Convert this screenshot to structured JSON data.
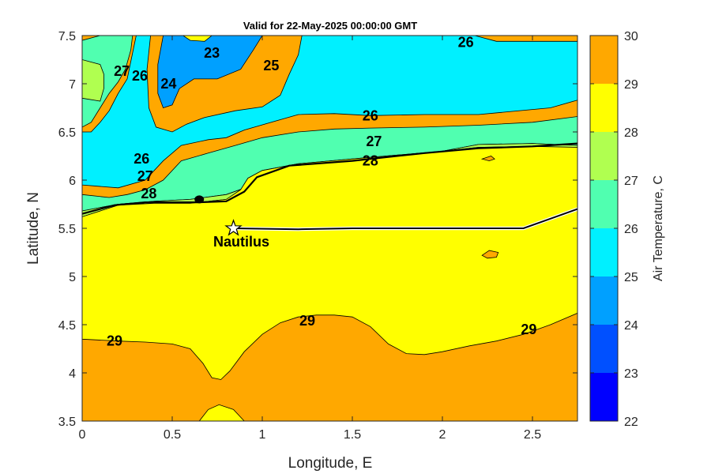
{
  "chart_data": {
    "type": "heatmap",
    "subtype": "filled-contour",
    "title": "Valid for 22-May-2025 00:00:00 GMT",
    "xlabel": "Longitude, E",
    "ylabel": "Latitude, N",
    "xlim": [
      0,
      2.75
    ],
    "ylim": [
      3.5,
      7.5
    ],
    "xticks": [
      0,
      0.5,
      1,
      1.5,
      2,
      2.5
    ],
    "xtick_labels": [
      "0",
      "0.5",
      "1",
      "1.5",
      "2",
      "2.5"
    ],
    "yticks": [
      3.5,
      4,
      4.5,
      5,
      5.5,
      6,
      6.5,
      7,
      7.5
    ],
    "ytick_labels": [
      "3.5",
      "4",
      "4.5",
      "5",
      "5.5",
      "6",
      "6.5",
      "7",
      "7.5"
    ],
    "colorbar": {
      "label": "Air Temperature, C",
      "levels": [
        22,
        23,
        24,
        25,
        26,
        27,
        28,
        29,
        30
      ],
      "tick_labels": [
        "22",
        "23",
        "24",
        "25",
        "26",
        "27",
        "28",
        "29",
        "30"
      ],
      "colors": [
        "#0000ff",
        "#0050ff",
        "#00a0ff",
        "#00f0ff",
        "#50ffb0",
        "#b0ff50",
        "#ffff00",
        "#ffa800",
        "#ff5000"
      ]
    },
    "regions": [
      {
        "level": 23,
        "points": [
          [
            0.54,
            7.5
          ],
          [
            0.65,
            7.35
          ],
          [
            0.8,
            7.28
          ],
          [
            0.85,
            7.4
          ],
          [
            0.85,
            7.5
          ]
        ]
      },
      {
        "level": 24,
        "points": [
          [
            0.45,
            7.5
          ],
          [
            0.42,
            7.2
          ],
          [
            0.42,
            6.9
          ],
          [
            0.45,
            6.75
          ],
          [
            0.5,
            6.78
          ],
          [
            0.54,
            6.95
          ],
          [
            0.62,
            7.05
          ],
          [
            0.75,
            7.05
          ],
          [
            0.88,
            7.15
          ],
          [
            0.95,
            7.35
          ],
          [
            1.0,
            7.5
          ]
        ]
      },
      {
        "level": 25,
        "points": [
          [
            0.38,
            7.5
          ],
          [
            0.36,
            7.15
          ],
          [
            0.37,
            6.75
          ],
          [
            0.41,
            6.55
          ],
          [
            0.5,
            6.5
          ],
          [
            0.58,
            6.58
          ],
          [
            0.68,
            6.65
          ],
          [
            0.85,
            6.72
          ],
          [
            1.0,
            6.76
          ],
          [
            1.1,
            6.88
          ],
          [
            1.15,
            7.1
          ],
          [
            1.2,
            7.3
          ],
          [
            1.22,
            7.5
          ],
          [
            2.18,
            7.5
          ],
          [
            2.3,
            7.44
          ],
          [
            2.75,
            7.44
          ],
          [
            2.75,
            6.83
          ],
          [
            2.6,
            6.75
          ],
          [
            2.2,
            6.68
          ],
          [
            1.9,
            6.68
          ],
          [
            1.6,
            6.67
          ],
          [
            1.4,
            6.69
          ],
          [
            1.2,
            6.68
          ],
          [
            1.05,
            6.6
          ],
          [
            0.9,
            6.52
          ],
          [
            0.8,
            6.44
          ],
          [
            0.7,
            6.42
          ],
          [
            0.55,
            6.36
          ],
          [
            0.45,
            6.2
          ],
          [
            0.35,
            6.0
          ],
          [
            0.2,
            5.92
          ],
          [
            0.0,
            5.95
          ],
          [
            0.0,
            6.5
          ],
          [
            0.05,
            6.5
          ],
          [
            0.1,
            6.6
          ],
          [
            0.15,
            6.72
          ],
          [
            0.2,
            6.9
          ],
          [
            0.25,
            7.05
          ],
          [
            0.3,
            7.5
          ]
        ]
      },
      {
        "level": 26,
        "points": [
          [
            0.0,
            5.85
          ],
          [
            0.15,
            5.82
          ],
          [
            0.25,
            5.85
          ],
          [
            0.35,
            5.9
          ],
          [
            0.45,
            6.0
          ],
          [
            0.55,
            6.2
          ],
          [
            0.7,
            6.28
          ],
          [
            0.85,
            6.36
          ],
          [
            1.0,
            6.44
          ],
          [
            1.2,
            6.5
          ],
          [
            1.4,
            6.53
          ],
          [
            1.6,
            6.54
          ],
          [
            1.9,
            6.55
          ],
          [
            2.2,
            6.57
          ],
          [
            2.5,
            6.6
          ],
          [
            2.75,
            6.66
          ],
          [
            2.75,
            6.36
          ],
          [
            2.5,
            6.38
          ],
          [
            2.2,
            6.37
          ],
          [
            2.0,
            6.3
          ],
          [
            1.8,
            6.25
          ],
          [
            1.6,
            6.2
          ],
          [
            1.4,
            6.18
          ],
          [
            1.2,
            6.12
          ],
          [
            1.05,
            6.05
          ],
          [
            0.95,
            5.95
          ],
          [
            0.8,
            5.85
          ],
          [
            0.6,
            5.8
          ],
          [
            0.4,
            5.78
          ],
          [
            0.2,
            5.75
          ],
          [
            0.0,
            5.68
          ]
        ]
      },
      {
        "level": 26,
        "points": [
          [
            0.0,
            6.55
          ],
          [
            0.05,
            6.6
          ],
          [
            0.1,
            6.75
          ],
          [
            0.15,
            6.9
          ],
          [
            0.2,
            7.02
          ],
          [
            0.24,
            7.15
          ],
          [
            0.27,
            7.35
          ],
          [
            0.28,
            7.5
          ],
          [
            0.1,
            7.5
          ],
          [
            0.0,
            7.45
          ]
        ]
      },
      {
        "level": 27,
        "points": [
          [
            0.0,
            5.68
          ],
          [
            0.2,
            5.75
          ],
          [
            0.4,
            5.78
          ],
          [
            0.6,
            5.8
          ],
          [
            0.8,
            5.85
          ],
          [
            0.95,
            5.95
          ],
          [
            1.05,
            6.05
          ],
          [
            1.2,
            6.12
          ],
          [
            1.4,
            6.18
          ],
          [
            1.6,
            6.2
          ],
          [
            1.8,
            6.25
          ],
          [
            2.0,
            6.3
          ],
          [
            2.2,
            6.37
          ],
          [
            2.5,
            6.38
          ],
          [
            2.75,
            6.36
          ],
          [
            2.75,
            6.34
          ],
          [
            2.5,
            6.35
          ],
          [
            2.2,
            6.34
          ],
          [
            2.0,
            6.3
          ],
          [
            1.75,
            6.26
          ],
          [
            1.5,
            6.22
          ],
          [
            1.2,
            6.17
          ],
          [
            1.0,
            6.1
          ],
          [
            0.92,
            6.02
          ],
          [
            0.88,
            5.9
          ],
          [
            0.8,
            5.8
          ],
          [
            0.6,
            5.76
          ],
          [
            0.4,
            5.76
          ],
          [
            0.2,
            5.74
          ],
          [
            0.0,
            5.62
          ]
        ]
      },
      {
        "level": 27,
        "points": [
          [
            0.0,
            6.85
          ],
          [
            0.1,
            6.82
          ],
          [
            0.12,
            6.95
          ],
          [
            0.12,
            7.1
          ],
          [
            0.1,
            7.2
          ],
          [
            0.0,
            7.25
          ]
        ]
      },
      {
        "level": 28,
        "points": [
          [
            0.0,
            5.62
          ],
          [
            0.2,
            5.74
          ],
          [
            0.4,
            5.76
          ],
          [
            0.6,
            5.76
          ],
          [
            0.8,
            5.8
          ],
          [
            0.88,
            5.9
          ],
          [
            0.92,
            6.02
          ],
          [
            1.0,
            6.1
          ],
          [
            1.2,
            6.17
          ],
          [
            1.5,
            6.22
          ],
          [
            1.75,
            6.26
          ],
          [
            2.0,
            6.3
          ],
          [
            2.2,
            6.34
          ],
          [
            2.5,
            6.35
          ],
          [
            2.75,
            6.34
          ],
          [
            2.75,
            4.62
          ],
          [
            2.6,
            4.5
          ],
          [
            2.45,
            4.4
          ],
          [
            2.3,
            4.33
          ],
          [
            2.15,
            4.28
          ],
          [
            2.0,
            4.22
          ],
          [
            1.9,
            4.19
          ],
          [
            1.8,
            4.2
          ],
          [
            1.7,
            4.3
          ],
          [
            1.6,
            4.48
          ],
          [
            1.5,
            4.58
          ],
          [
            1.4,
            4.6
          ],
          [
            1.3,
            4.6
          ],
          [
            1.2,
            4.58
          ],
          [
            1.1,
            4.52
          ],
          [
            1.0,
            4.4
          ],
          [
            0.9,
            4.22
          ],
          [
            0.82,
            4.02
          ],
          [
            0.77,
            3.93
          ],
          [
            0.72,
            3.95
          ],
          [
            0.67,
            4.1
          ],
          [
            0.6,
            4.25
          ],
          [
            0.5,
            4.3
          ],
          [
            0.35,
            4.32
          ],
          [
            0.2,
            4.33
          ],
          [
            0.0,
            4.35
          ]
        ]
      },
      {
        "level": 28,
        "points": [
          [
            0.56,
            7.5
          ],
          [
            0.6,
            7.45
          ],
          [
            0.68,
            7.44
          ],
          [
            0.72,
            7.5
          ]
        ]
      },
      {
        "level": 28,
        "points": [
          [
            0.65,
            3.5
          ],
          [
            0.7,
            3.62
          ],
          [
            0.76,
            3.67
          ],
          [
            0.84,
            3.62
          ],
          [
            0.9,
            3.5
          ]
        ]
      },
      {
        "level": 29,
        "points": [
          [
            2.22,
            6.22
          ],
          [
            2.27,
            6.25
          ],
          [
            2.29,
            6.22
          ],
          [
            2.26,
            6.2
          ]
        ]
      },
      {
        "level": 29,
        "points": [
          [
            2.22,
            5.22
          ],
          [
            2.26,
            5.27
          ],
          [
            2.31,
            5.25
          ],
          [
            2.3,
            5.2
          ],
          [
            2.25,
            5.19
          ]
        ]
      }
    ],
    "isoline_labels": [
      {
        "value": "23",
        "x": 0.72,
        "y": 7.32
      },
      {
        "value": "24",
        "x": 0.48,
        "y": 7.0
      },
      {
        "value": "25",
        "x": 1.05,
        "y": 7.19
      },
      {
        "value": "26",
        "x": 2.13,
        "y": 7.43
      },
      {
        "value": "27",
        "x": 0.22,
        "y": 7.13
      },
      {
        "value": "26",
        "x": 0.32,
        "y": 7.08
      },
      {
        "value": "26",
        "x": 1.6,
        "y": 6.67
      },
      {
        "value": "27",
        "x": 1.62,
        "y": 6.4
      },
      {
        "value": "26",
        "x": 0.33,
        "y": 6.22
      },
      {
        "value": "27",
        "x": 0.35,
        "y": 6.04
      },
      {
        "value": "28",
        "x": 0.37,
        "y": 5.86
      },
      {
        "value": "28",
        "x": 1.6,
        "y": 6.2
      },
      {
        "value": "29",
        "x": 1.25,
        "y": 4.54
      },
      {
        "value": "29",
        "x": 0.18,
        "y": 4.33
      },
      {
        "value": "29",
        "x": 2.48,
        "y": 4.45
      }
    ],
    "track": [
      [
        0.0,
        5.65
      ],
      [
        0.18,
        5.74
      ],
      [
        0.35,
        5.77
      ],
      [
        0.55,
        5.77
      ],
      [
        0.65,
        5.77
      ],
      [
        0.8,
        5.78
      ],
      [
        0.9,
        5.88
      ],
      [
        0.97,
        6.03
      ],
      [
        1.15,
        6.15
      ],
      [
        1.5,
        6.2
      ],
      [
        1.9,
        6.28
      ],
      [
        2.2,
        6.33
      ],
      [
        2.5,
        6.35
      ],
      [
        2.75,
        6.38
      ]
    ],
    "route": [
      [
        0.84,
        5.5
      ],
      [
        1.2,
        5.49
      ],
      [
        1.5,
        5.5
      ],
      [
        2.0,
        5.5
      ],
      [
        2.45,
        5.5
      ],
      [
        2.6,
        5.6
      ],
      [
        2.75,
        5.7
      ]
    ],
    "station": {
      "name": "Nautilus",
      "x": 0.84,
      "y": 5.5
    }
  }
}
